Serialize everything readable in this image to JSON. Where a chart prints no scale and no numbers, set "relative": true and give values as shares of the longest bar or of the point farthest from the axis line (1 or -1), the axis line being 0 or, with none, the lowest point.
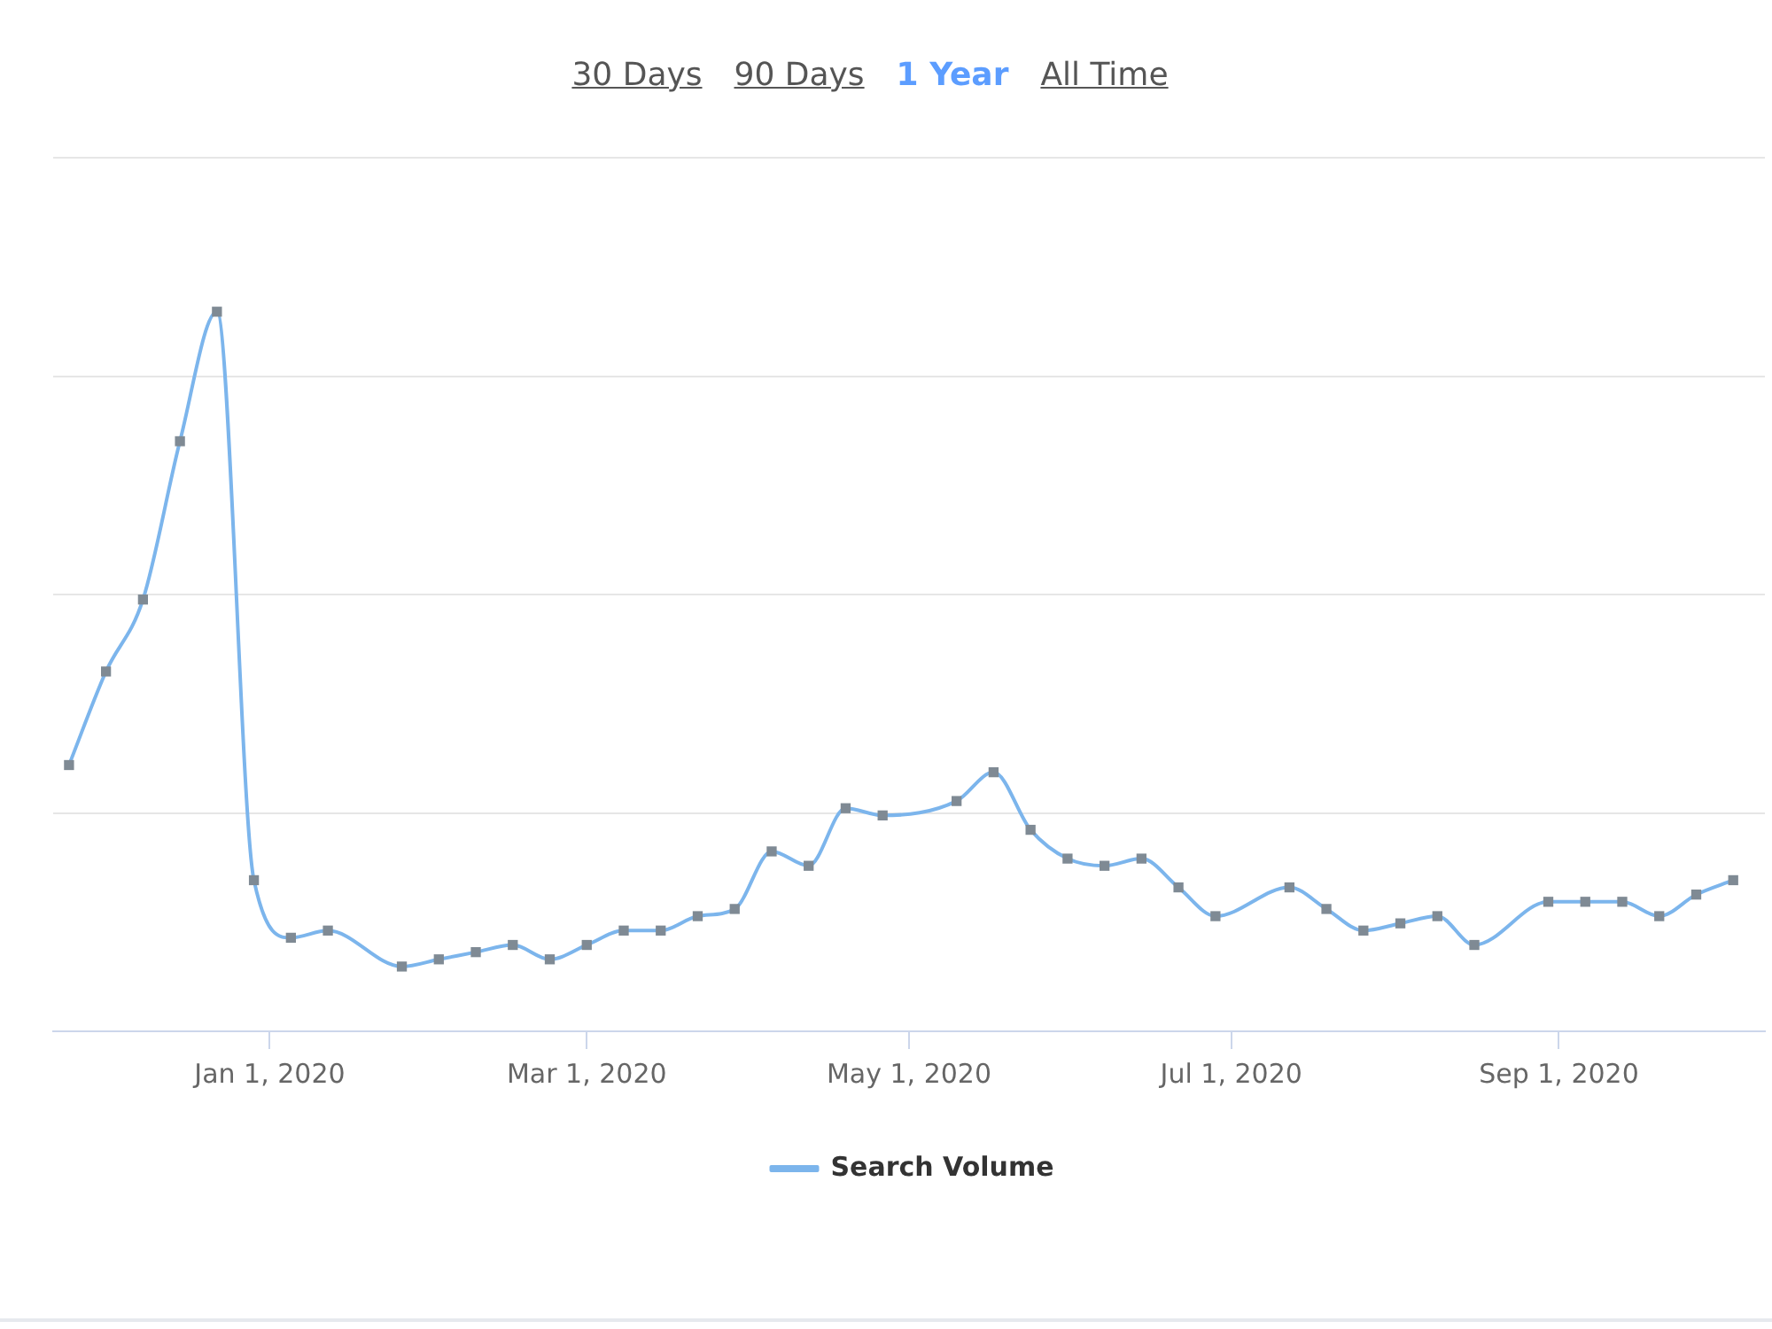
{
  "chart_data": {
    "type": "line",
    "annotations": [
      "30 Days",
      "90 Days",
      "1 Year",
      "All Time"
    ],
    "x": [
      "2019-11-24",
      "2019-12-01",
      "2019-12-08",
      "2019-12-15",
      "2019-12-22",
      "2019-12-29",
      "2020-01-05",
      "2020-01-12",
      "2020-01-26",
      "2020-02-02",
      "2020-02-09",
      "2020-02-16",
      "2020-02-23",
      "2020-03-01",
      "2020-03-08",
      "2020-03-15",
      "2020-03-22",
      "2020-03-29",
      "2020-04-05",
      "2020-04-12",
      "2020-04-19",
      "2020-04-26",
      "2020-05-10",
      "2020-05-17",
      "2020-05-24",
      "2020-05-31",
      "2020-06-07",
      "2020-06-14",
      "2020-06-21",
      "2020-06-28",
      "2020-07-12",
      "2020-07-19",
      "2020-07-26",
      "2020-08-02",
      "2020-08-09",
      "2020-08-16",
      "2020-08-30",
      "2020-09-06",
      "2020-09-13",
      "2020-09-20",
      "2020-09-27",
      "2020-10-04"
    ],
    "series": [
      {
        "name": "Search Volume",
        "color": "#7cb5ec",
        "values": [
          0.37,
          0.5,
          0.6,
          0.82,
          1.0,
          0.21,
          0.13,
          0.14,
          0.09,
          0.1,
          0.11,
          0.12,
          0.1,
          0.12,
          0.14,
          0.14,
          0.16,
          0.17,
          0.25,
          0.23,
          0.31,
          0.3,
          0.32,
          0.36,
          0.28,
          0.24,
          0.23,
          0.24,
          0.2,
          0.16,
          0.2,
          0.17,
          0.14,
          0.15,
          0.16,
          0.12,
          0.18,
          0.18,
          0.18,
          0.16,
          0.19,
          0.21
        ]
      }
    ],
    "relative": true,
    "xlim": [
      "2019-11-21",
      "2020-10-10"
    ],
    "xticks": [
      {
        "value": "2020-01-01",
        "label": "Jan 1, 2020"
      },
      {
        "value": "2020-03-01",
        "label": "Mar 1, 2020"
      },
      {
        "value": "2020-05-01",
        "label": "May 1, 2020"
      },
      {
        "value": "2020-07-01",
        "label": "Jul 1, 2020"
      },
      {
        "value": "2020-09-01",
        "label": "Sep 1, 2020"
      }
    ],
    "tick_labels": "x",
    "grid": "y",
    "legend": "bottom",
    "marker": "square",
    "line_style": "solid"
  }
}
